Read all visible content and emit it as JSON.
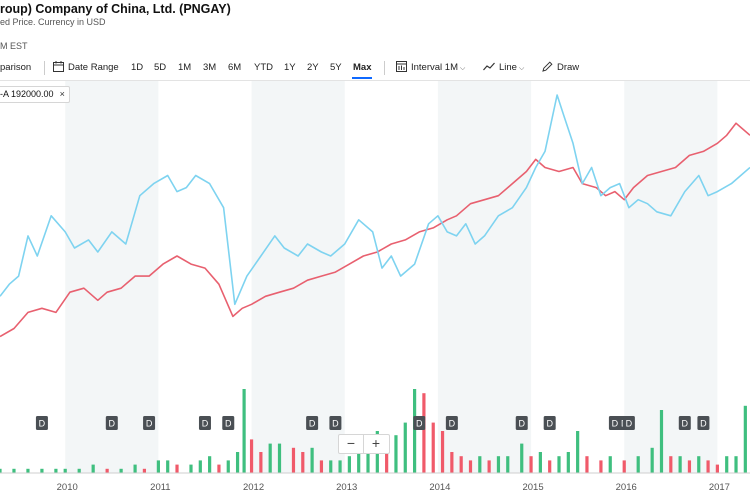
{
  "header": {
    "title": "roup) Company of China, Ltd. (PNGAY)",
    "subtitle": "ed Price. Currency in USD",
    "time": "M EST"
  },
  "toolbar": {
    "comparison": "parison",
    "date_range": "Date Range",
    "ranges": [
      "1D",
      "5D",
      "1M",
      "3M",
      "6M",
      "YTD",
      "1Y",
      "2Y",
      "5Y",
      "Max"
    ],
    "active_range": "Max",
    "interval_label": "Interval",
    "interval_value": "1M",
    "line_label": "Line",
    "draw_label": "Draw"
  },
  "comparison_pill": {
    "label": "-A 192000.00",
    "close": "×"
  },
  "zoom": {
    "minus": "−",
    "plus": "+"
  },
  "colors": {
    "series_main": "#e8606f",
    "series_compare": "#7ed3f0",
    "vol_up": "#3fbf7f",
    "vol_down": "#f05a6a",
    "band": "#f3f6f7"
  },
  "icons": {
    "calendar": "calendar-icon",
    "interval": "candle-chart-icon",
    "line": "line-chart-icon",
    "draw": "pencil-icon",
    "close": "close-icon"
  },
  "chart_data": {
    "type": "line",
    "x_labels": [
      "2010",
      "2011",
      "2012",
      "2013",
      "2014",
      "2015",
      "2016",
      "2017"
    ],
    "x_start": 2009.3,
    "x_end": 2017.35,
    "dividend_label": "D",
    "dividends": [
      2009.75,
      2010.5,
      2010.9,
      2011.5,
      2011.75,
      2012.65,
      2012.9,
      2013.8,
      2014.15,
      2014.9,
      2015.2,
      2015.9,
      2016,
      2016.05,
      2016.65,
      2016.85
    ],
    "series": [
      {
        "id": "main",
        "values": [
          [
            2009.3,
            20
          ],
          [
            2009.45,
            22
          ],
          [
            2009.6,
            26
          ],
          [
            2009.75,
            27
          ],
          [
            2009.9,
            26
          ],
          [
            2010.05,
            31
          ],
          [
            2010.2,
            32
          ],
          [
            2010.35,
            29
          ],
          [
            2010.45,
            31
          ],
          [
            2010.6,
            32
          ],
          [
            2010.75,
            35
          ],
          [
            2010.9,
            35
          ],
          [
            2011.05,
            38
          ],
          [
            2011.2,
            40
          ],
          [
            2011.35,
            38
          ],
          [
            2011.5,
            37
          ],
          [
            2011.65,
            33
          ],
          [
            2011.8,
            25
          ],
          [
            2011.9,
            27
          ],
          [
            2012,
            28
          ],
          [
            2012.15,
            30
          ],
          [
            2012.3,
            31
          ],
          [
            2012.45,
            32
          ],
          [
            2012.6,
            34
          ],
          [
            2012.75,
            35
          ],
          [
            2012.9,
            36
          ],
          [
            2013.05,
            38
          ],
          [
            2013.2,
            40
          ],
          [
            2013.35,
            41
          ],
          [
            2013.5,
            43
          ],
          [
            2013.65,
            44
          ],
          [
            2013.8,
            46
          ],
          [
            2013.95,
            47
          ],
          [
            2014.1,
            49
          ],
          [
            2014.2,
            50
          ],
          [
            2014.35,
            53
          ],
          [
            2014.5,
            54
          ],
          [
            2014.65,
            55
          ],
          [
            2014.8,
            58
          ],
          [
            2014.95,
            61
          ],
          [
            2015.05,
            64
          ],
          [
            2015.15,
            62
          ],
          [
            2015.3,
            61
          ],
          [
            2015.45,
            62
          ],
          [
            2015.55,
            58
          ],
          [
            2015.7,
            57
          ],
          [
            2015.8,
            55
          ],
          [
            2015.9,
            56
          ],
          [
            2016,
            54
          ],
          [
            2016.1,
            57
          ],
          [
            2016.25,
            60
          ],
          [
            2016.4,
            61
          ],
          [
            2016.55,
            62
          ],
          [
            2016.7,
            65
          ],
          [
            2016.85,
            66
          ],
          [
            2017,
            68
          ],
          [
            2017.1,
            70
          ],
          [
            2017.2,
            73
          ],
          [
            2017.35,
            70
          ]
        ]
      },
      {
        "id": "compare",
        "values": [
          [
            2009.3,
            30
          ],
          [
            2009.4,
            33
          ],
          [
            2009.5,
            35
          ],
          [
            2009.6,
            45
          ],
          [
            2009.7,
            40
          ],
          [
            2009.85,
            50
          ],
          [
            2010,
            46
          ],
          [
            2010.1,
            42
          ],
          [
            2010.25,
            44
          ],
          [
            2010.35,
            41
          ],
          [
            2010.5,
            46
          ],
          [
            2010.65,
            43
          ],
          [
            2010.8,
            55
          ],
          [
            2010.95,
            58
          ],
          [
            2011.1,
            60
          ],
          [
            2011.2,
            56
          ],
          [
            2011.3,
            57
          ],
          [
            2011.4,
            60
          ],
          [
            2011.55,
            58
          ],
          [
            2011.7,
            52
          ],
          [
            2011.82,
            28
          ],
          [
            2011.95,
            35
          ],
          [
            2012.1,
            40
          ],
          [
            2012.25,
            45
          ],
          [
            2012.35,
            42
          ],
          [
            2012.5,
            40
          ],
          [
            2012.6,
            43
          ],
          [
            2012.75,
            41
          ],
          [
            2012.85,
            40
          ],
          [
            2013,
            43
          ],
          [
            2013.15,
            49
          ],
          [
            2013.3,
            46
          ],
          [
            2013.4,
            37
          ],
          [
            2013.5,
            40
          ],
          [
            2013.6,
            35
          ],
          [
            2013.75,
            38
          ],
          [
            2013.9,
            48
          ],
          [
            2014,
            50
          ],
          [
            2014.1,
            46
          ],
          [
            2014.2,
            45
          ],
          [
            2014.3,
            48
          ],
          [
            2014.4,
            43
          ],
          [
            2014.5,
            45
          ],
          [
            2014.65,
            50
          ],
          [
            2014.8,
            52
          ],
          [
            2014.95,
            57
          ],
          [
            2015.05,
            62
          ],
          [
            2015.15,
            66
          ],
          [
            2015.28,
            80
          ],
          [
            2015.35,
            75
          ],
          [
            2015.45,
            68
          ],
          [
            2015.55,
            58
          ],
          [
            2015.65,
            62
          ],
          [
            2015.75,
            55
          ],
          [
            2015.85,
            57
          ],
          [
            2015.95,
            58
          ],
          [
            2016.05,
            52
          ],
          [
            2016.15,
            54
          ],
          [
            2016.25,
            53
          ],
          [
            2016.35,
            51
          ],
          [
            2016.5,
            50
          ],
          [
            2016.65,
            56
          ],
          [
            2016.8,
            60
          ],
          [
            2016.9,
            55
          ],
          [
            2017,
            56
          ],
          [
            2017.15,
            58
          ],
          [
            2017.35,
            62
          ]
        ]
      }
    ],
    "volume": [
      [
        2009.3,
        1
      ],
      [
        2009.45,
        1
      ],
      [
        2009.6,
        1
      ],
      [
        2009.75,
        1
      ],
      [
        2009.9,
        1
      ],
      [
        2010,
        1
      ],
      [
        2010.15,
        1
      ],
      [
        2010.3,
        2
      ],
      [
        2010.45,
        1
      ],
      [
        2010.6,
        1
      ],
      [
        2010.75,
        2
      ],
      [
        2010.85,
        1
      ],
      [
        2011,
        3
      ],
      [
        2011.1,
        3
      ],
      [
        2011.2,
        2
      ],
      [
        2011.35,
        2
      ],
      [
        2011.45,
        3
      ],
      [
        2011.55,
        4
      ],
      [
        2011.65,
        2
      ],
      [
        2011.75,
        3
      ],
      [
        2011.85,
        5
      ],
      [
        2011.92,
        20
      ],
      [
        2012,
        8
      ],
      [
        2012.1,
        5
      ],
      [
        2012.2,
        7
      ],
      [
        2012.3,
        7
      ],
      [
        2012.45,
        6
      ],
      [
        2012.55,
        5
      ],
      [
        2012.65,
        6
      ],
      [
        2012.75,
        3
      ],
      [
        2012.85,
        3
      ],
      [
        2012.95,
        3
      ],
      [
        2013.05,
        4
      ],
      [
        2013.15,
        6
      ],
      [
        2013.25,
        7
      ],
      [
        2013.35,
        10
      ],
      [
        2013.45,
        8
      ],
      [
        2013.55,
        9
      ],
      [
        2013.65,
        12
      ],
      [
        2013.75,
        20
      ],
      [
        2013.85,
        19
      ],
      [
        2013.95,
        12
      ],
      [
        2014.05,
        10
      ],
      [
        2014.15,
        5
      ],
      [
        2014.25,
        4
      ],
      [
        2014.35,
        3
      ],
      [
        2014.45,
        4
      ],
      [
        2014.55,
        3
      ],
      [
        2014.65,
        4
      ],
      [
        2014.75,
        4
      ],
      [
        2014.9,
        7
      ],
      [
        2015,
        4
      ],
      [
        2015.1,
        5
      ],
      [
        2015.2,
        3
      ],
      [
        2015.3,
        4
      ],
      [
        2015.4,
        5
      ],
      [
        2015.5,
        10
      ],
      [
        2015.6,
        4
      ],
      [
        2015.75,
        3
      ],
      [
        2015.85,
        4
      ],
      [
        2016,
        3
      ],
      [
        2016.15,
        4
      ],
      [
        2016.3,
        6
      ],
      [
        2016.4,
        15
      ],
      [
        2016.5,
        4
      ],
      [
        2016.6,
        4
      ],
      [
        2016.7,
        3
      ],
      [
        2016.8,
        4
      ],
      [
        2016.9,
        3
      ],
      [
        2017,
        2
      ],
      [
        2017.1,
        4
      ],
      [
        2017.2,
        4
      ],
      [
        2017.3,
        16
      ]
    ]
  }
}
